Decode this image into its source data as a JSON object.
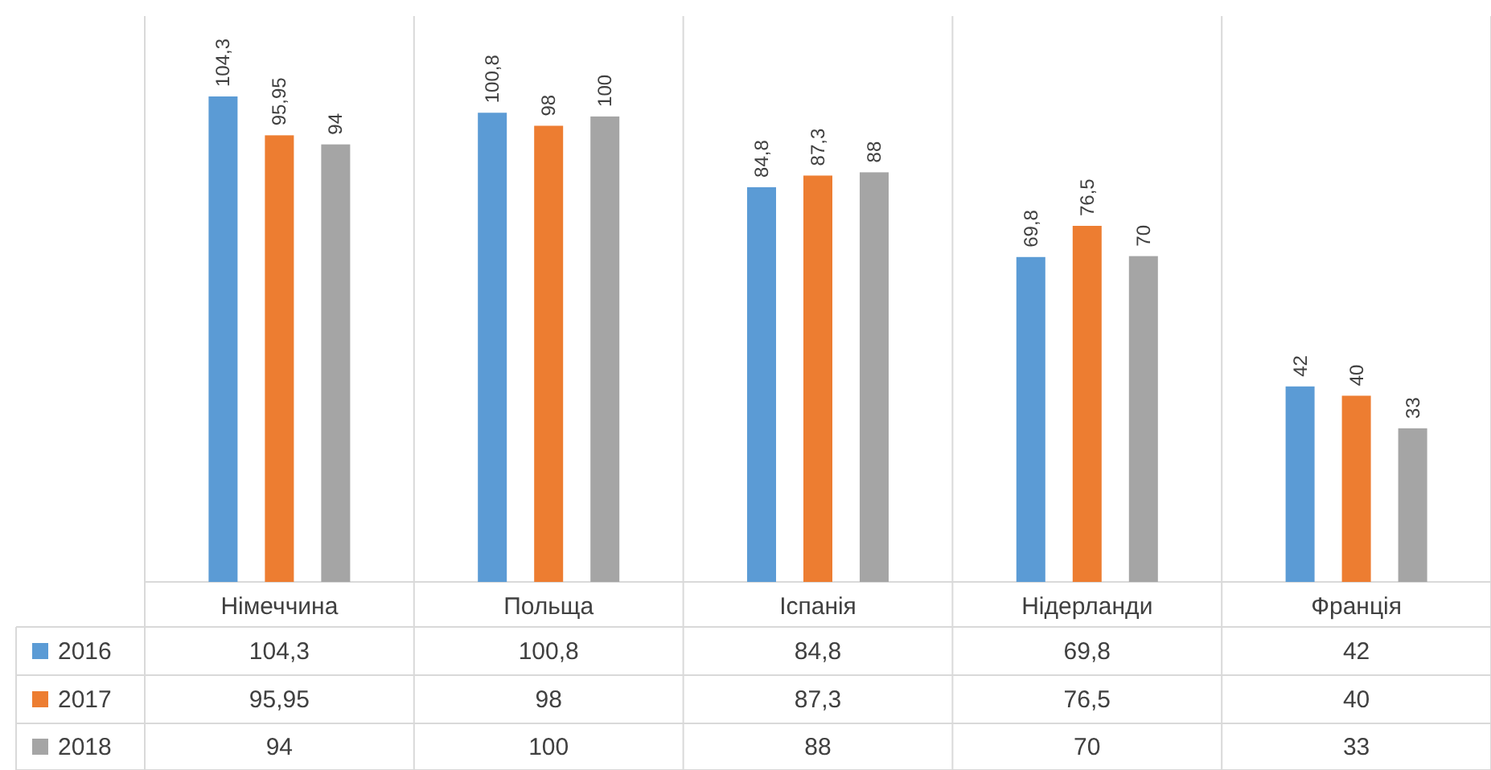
{
  "chart_data": {
    "type": "bar",
    "categories": [
      "Німеччина",
      "Польща",
      "Іспанія",
      "Нідерланди",
      "Франція"
    ],
    "series": [
      {
        "name": "2016",
        "color": "#5b9bd5",
        "values": [
          104.3,
          100.8,
          84.8,
          69.8,
          42
        ],
        "value_labels": [
          "104,3",
          "100,8",
          "84,8",
          "69,8",
          "42"
        ]
      },
      {
        "name": "2017",
        "color": "#ed7d31",
        "values": [
          95.95,
          98,
          87.3,
          76.5,
          40
        ],
        "value_labels": [
          "95,95",
          "98",
          "87,3",
          "76,5",
          "40"
        ]
      },
      {
        "name": "2018",
        "color": "#a5a5a5",
        "values": [
          94,
          100,
          88,
          70,
          33
        ],
        "value_labels": [
          "94",
          "100",
          "88",
          "70",
          "33"
        ]
      }
    ],
    "legend": "bottom left"
  }
}
